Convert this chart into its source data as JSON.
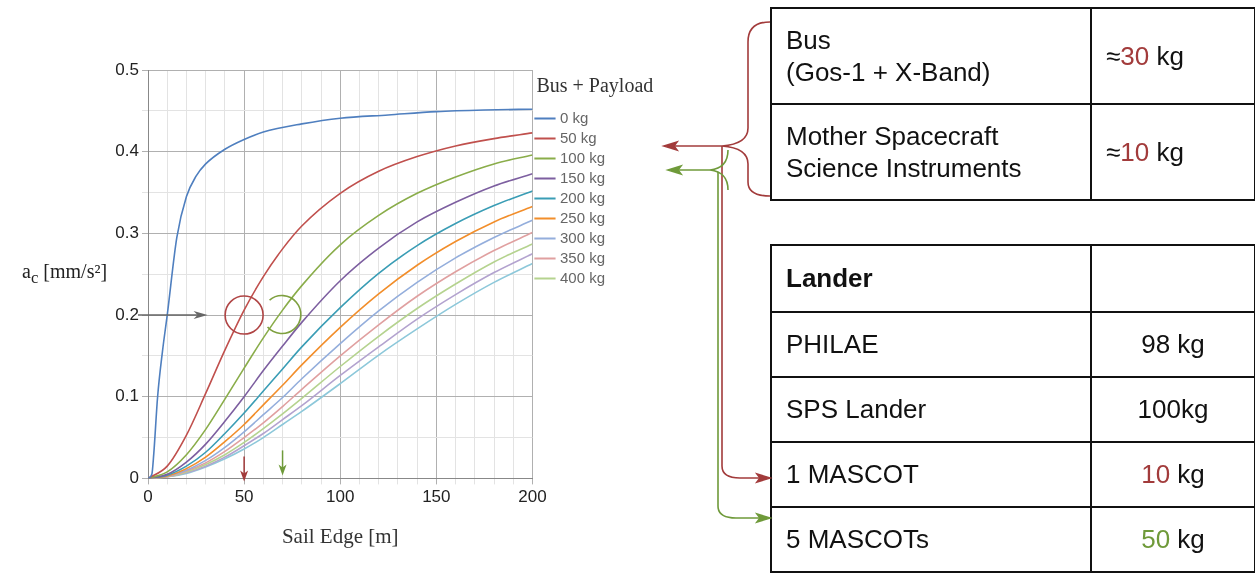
{
  "chart_data": [
    {
      "type": "line",
      "xlabel": "Sail Edge [m]",
      "ylabel": "a$_{c}$ [mm/s²]",
      "legend_title": "Bus + Payload",
      "legend": "top right",
      "grid": true,
      "marker": "none",
      "line_style": "solid",
      "xlim": [
        0,
        200
      ],
      "xticks": [
        0,
        {
          "value": 10,
          "label": null
        },
        {
          "value": 20,
          "label": null
        },
        {
          "value": 30,
          "label": null
        },
        {
          "value": 40,
          "label": null
        },
        50,
        {
          "value": 60,
          "label": null
        },
        {
          "value": 70,
          "label": null
        },
        {
          "value": 80,
          "label": null
        },
        {
          "value": 90,
          "label": null
        },
        100,
        {
          "value": 110,
          "label": null
        },
        {
          "value": 120,
          "label": null
        },
        {
          "value": 130,
          "label": null
        },
        {
          "value": 140,
          "label": null
        },
        150,
        {
          "value": 160,
          "label": null
        },
        {
          "value": 170,
          "label": null
        },
        {
          "value": 180,
          "label": null
        },
        {
          "value": 190,
          "label": null
        },
        200
      ],
      "ylim": [
        0,
        0.5
      ],
      "yticks": [
        0,
        {
          "value": 0.05,
          "label": null
        },
        0.1,
        {
          "value": 0.15,
          "label": null
        },
        0.2,
        {
          "value": 0.25,
          "label": null
        },
        0.3,
        {
          "value": 0.35,
          "label": null
        },
        0.4,
        {
          "value": 0.45,
          "label": null
        },
        0.5
      ],
      "x": [
        0,
        10,
        20,
        30,
        40,
        50,
        60,
        70,
        80,
        100,
        120,
        140,
        160,
        180,
        200
      ],
      "series": [
        {
          "name": "0 kg",
          "color": "#4f7fbf",
          "x": [
            0,
            2,
            3,
            5,
            7.5,
            10,
            15,
            20,
            25,
            30,
            40,
            50,
            60,
            80,
            100,
            125,
            150,
            175,
            200
          ],
          "values": [
            0,
            0.005,
            0.03,
            0.1,
            0.155,
            0.2,
            0.295,
            0.345,
            0.37,
            0.385,
            0.403,
            0.415,
            0.424,
            0.434,
            0.441,
            0.445,
            0.449,
            0.451,
            0.452
          ]
        },
        {
          "name": "50 kg",
          "color": "#c0504d",
          "values": [
            0,
            0.015,
            0.053,
            0.104,
            0.157,
            0.206,
            0.247,
            0.281,
            0.309,
            0.349,
            0.376,
            0.394,
            0.407,
            0.416,
            0.423
          ]
        },
        {
          "name": "100 kg",
          "color": "#8aad4a",
          "values": [
            0,
            0.008,
            0.029,
            0.06,
            0.097,
            0.135,
            0.172,
            0.206,
            0.236,
            0.286,
            0.322,
            0.349,
            0.369,
            0.385,
            0.396
          ]
        },
        {
          "name": "150 kg",
          "color": "#7d5fa0",
          "values": [
            0,
            0.005,
            0.02,
            0.042,
            0.07,
            0.1,
            0.132,
            0.162,
            0.191,
            0.242,
            0.282,
            0.314,
            0.338,
            0.358,
            0.373
          ]
        },
        {
          "name": "200 kg",
          "color": "#3a9db5",
          "values": [
            0,
            0.004,
            0.015,
            0.032,
            0.055,
            0.08,
            0.107,
            0.134,
            0.161,
            0.209,
            0.251,
            0.285,
            0.312,
            0.334,
            0.352
          ]
        },
        {
          "name": "250 kg",
          "color": "#f28e2b",
          "values": [
            0,
            0.003,
            0.012,
            0.026,
            0.045,
            0.066,
            0.09,
            0.114,
            0.139,
            0.185,
            0.226,
            0.261,
            0.29,
            0.314,
            0.333
          ]
        },
        {
          "name": "300 kg",
          "color": "#94aedc",
          "values": [
            0,
            0.003,
            0.01,
            0.022,
            0.038,
            0.057,
            0.078,
            0.099,
            0.122,
            0.165,
            0.205,
            0.24,
            0.27,
            0.295,
            0.316
          ]
        },
        {
          "name": "350 kg",
          "color": "#e0a0a0",
          "values": [
            0,
            0.002,
            0.009,
            0.019,
            0.033,
            0.05,
            0.068,
            0.088,
            0.109,
            0.15,
            0.188,
            0.223,
            0.253,
            0.279,
            0.301
          ]
        },
        {
          "name": "400 kg",
          "color": "#b5d38f",
          "values": [
            0,
            0.002,
            0.008,
            0.017,
            0.029,
            0.044,
            0.061,
            0.079,
            0.098,
            0.137,
            0.174,
            0.208,
            0.238,
            0.265,
            0.287
          ]
        },
        {
          "color": "#b3a3cf",
          "values": [
            0,
            0.002,
            0.007,
            0.015,
            0.026,
            0.04,
            0.055,
            0.072,
            0.089,
            0.126,
            0.161,
            0.195,
            0.225,
            0.252,
            0.275
          ]
        },
        {
          "color": "#8dc8da",
          "values": [
            0,
            0.002,
            0.006,
            0.014,
            0.024,
            0.036,
            0.05,
            0.066,
            0.082,
            0.116,
            0.151,
            0.183,
            0.213,
            0.24,
            0.263
          ]
        }
      ]
    },
    {
      "type": "other",
      "annotations": [
        "Bus\n(Gos-1 + X-Band)",
        "≈30 kg",
        "Mother Spacecraft\nScience Instruments",
        "≈10 kg",
        "Lander",
        "PHILAE",
        "98 kg",
        "SPS Lander",
        "100kg",
        "1 MASCOT",
        "10 kg",
        "5 MASCOTs",
        "50 kg"
      ],
      "colors": [
        null,
        "#a23b3b",
        null,
        "#a23b3b",
        null,
        null,
        null,
        null,
        null,
        null,
        "#a23b3b",
        null,
        "#6f9a3a"
      ]
    }
  ]
}
